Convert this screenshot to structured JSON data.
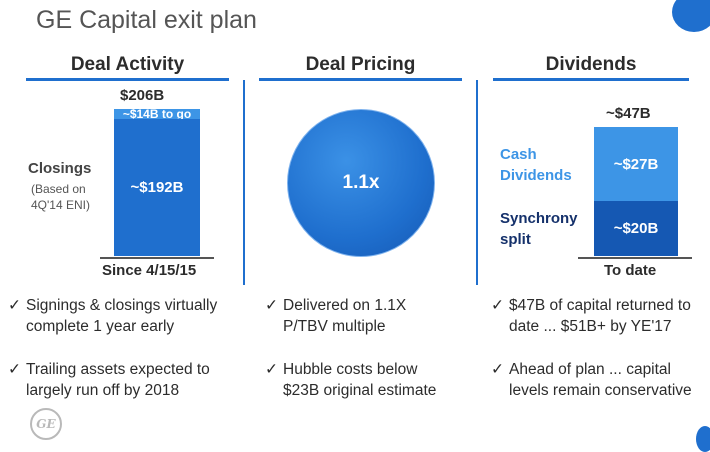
{
  "page_title": "GE Capital exit plan",
  "columns": {
    "deal_activity": "Deal Activity",
    "deal_pricing": "Deal Pricing",
    "dividends": "Dividends"
  },
  "deal_activity": {
    "closings_label": "Closings",
    "closings_note_1": "(Based on",
    "closings_note_2": "4Q'14 ENI)",
    "total_label": "$206B",
    "axis_label": "Since 4/15/15",
    "bullets": [
      {
        "line1": "Signings & closings virtually",
        "line2": "complete 1 year early"
      },
      {
        "line1": "Trailing assets expected to",
        "line2": "largely run off by 2018"
      }
    ]
  },
  "deal_pricing": {
    "value_label": "1.1x",
    "bullets": [
      {
        "line1": "Delivered on 1.1X",
        "line2": "P/TBV multiple"
      },
      {
        "line1": "Hubble costs below",
        "line2": "$23B original estimate"
      }
    ]
  },
  "dividends": {
    "total_label": "~$47B",
    "cash_label_1": "Cash",
    "cash_label_2": "Dividends",
    "sync_label_1": "Synchrony",
    "sync_label_2": "split",
    "axis_label": "To date",
    "bullets": [
      {
        "line1": "$47B of capital returned to",
        "line2": "date ... $51B+ by YE'17"
      },
      {
        "line1": "Ahead of plan ... capital",
        "line2": "levels remain conservative"
      }
    ]
  },
  "check_mark": "✓",
  "logo_text": "GE",
  "colors": {
    "accent": "#1f6fce",
    "light_blue": "#3d95e6",
    "mid_blue": "#2a7fd8",
    "dark_blue": "#1558b3"
  },
  "chart_data": [
    {
      "type": "bar",
      "title": "Deal Activity",
      "categories": [
        "Since 4/15/15"
      ],
      "series": [
        {
          "name": "Closings",
          "values": [
            192
          ],
          "label": "~$192B"
        },
        {
          "name": "To go",
          "values": [
            14
          ],
          "label": "~$14B to go"
        }
      ],
      "stacked": true,
      "total": 206,
      "unit": "$B",
      "ylim": [
        0,
        206
      ]
    },
    {
      "type": "bar",
      "title": "Dividends",
      "categories": [
        "To date"
      ],
      "series": [
        {
          "name": "Synchrony split",
          "values": [
            20
          ],
          "label": "~$20B"
        },
        {
          "name": "Cash Dividends",
          "values": [
            27
          ],
          "label": "~$27B"
        }
      ],
      "stacked": true,
      "total": 47,
      "unit": "$B",
      "ylim": [
        0,
        47
      ]
    }
  ]
}
